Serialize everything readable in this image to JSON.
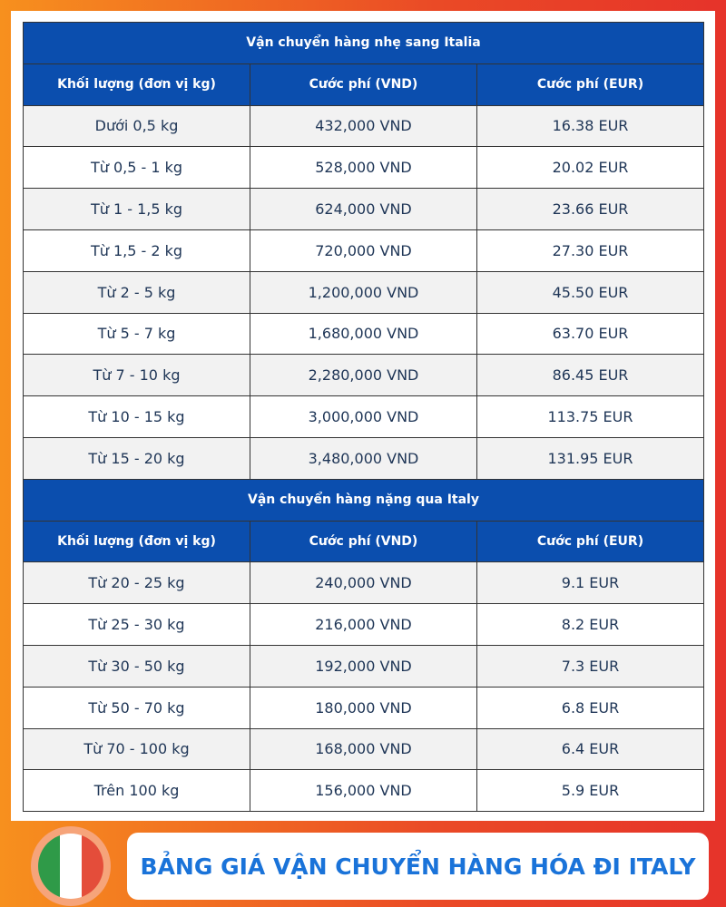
{
  "sections": [
    {
      "title": "Vận chuyển hàng nhẹ sang Italia",
      "headers": [
        "Khối lượng (đơn vị kg)",
        "Cước phí (VND)",
        "Cước phí (EUR)"
      ],
      "rows": [
        [
          "Dưới 0,5 kg",
          "432,000 VND",
          "16.38 EUR"
        ],
        [
          "Từ 0,5 - 1 kg",
          "528,000 VND",
          "20.02 EUR"
        ],
        [
          "Từ 1 - 1,5 kg",
          "624,000 VND",
          "23.66 EUR"
        ],
        [
          "Từ 1,5 - 2 kg",
          "720,000 VND",
          "27.30 EUR"
        ],
        [
          "Từ 2 - 5 kg",
          "1,200,000 VND",
          "45.50 EUR"
        ],
        [
          "Từ 5 - 7 kg",
          "1,680,000 VND",
          "63.70 EUR"
        ],
        [
          "Từ 7 - 10 kg",
          "2,280,000 VND",
          "86.45 EUR"
        ],
        [
          "Từ 10 - 15 kg",
          "3,000,000 VND",
          "113.75 EUR"
        ],
        [
          "Từ 15 - 20 kg",
          "3,480,000 VND",
          "131.95 EUR"
        ]
      ]
    },
    {
      "title": "Vận chuyển hàng nặng qua Italy",
      "headers": [
        "Khối lượng (đơn vị kg)",
        "Cước phí (VND)",
        "Cước phí (EUR)"
      ],
      "rows": [
        [
          "Từ 20 - 25 kg",
          "240,000 VND",
          "9.1 EUR"
        ],
        [
          "Từ 25 - 30 kg",
          "216,000 VND",
          "8.2 EUR"
        ],
        [
          "Từ 30 - 50 kg",
          "192,000 VND",
          "7.3 EUR"
        ],
        [
          "Từ 50 - 70 kg",
          "180,000 VND",
          "6.8 EUR"
        ],
        [
          "Từ 70 - 100 kg",
          "168,000 VND",
          "6.4 EUR"
        ],
        [
          "Trên 100 kg",
          "156,000 VND",
          "5.9 EUR"
        ]
      ]
    }
  ],
  "banner": "BẢNG GIÁ VẬN CHUYỂN HÀNG HÓA ĐI ITALY"
}
